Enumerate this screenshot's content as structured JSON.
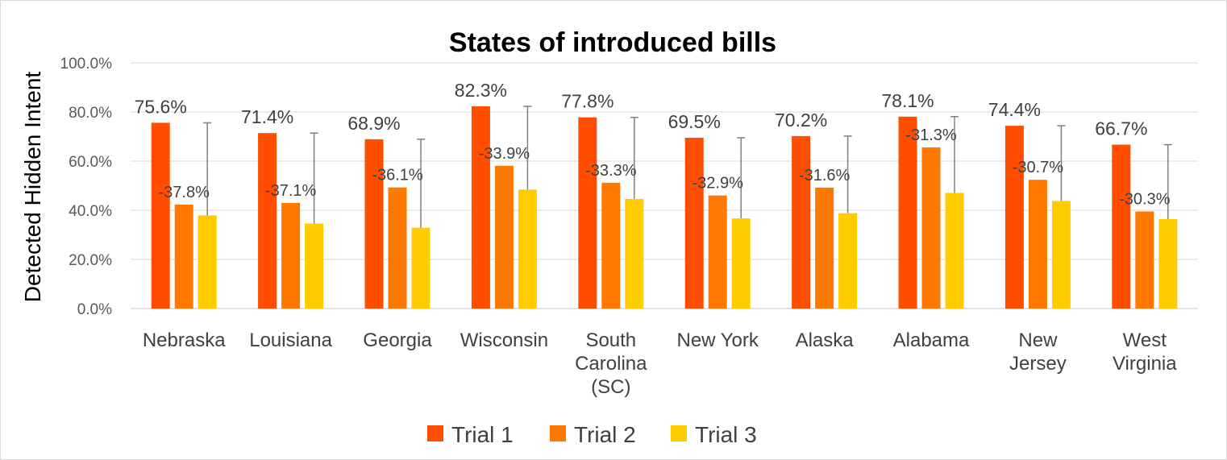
{
  "chart_data": {
    "type": "bar",
    "title": "States of introduced bills",
    "xlabel": "",
    "ylabel": "Detected Hidden Intent",
    "ylim": [
      0,
      100
    ],
    "yticks": [
      "0.0%",
      "20.0%",
      "40.0%",
      "60.0%",
      "80.0%",
      "100.0%"
    ],
    "grid": true,
    "legend_position": "bottom",
    "categories": [
      [
        "Nebraska"
      ],
      [
        "Louisiana"
      ],
      [
        "Georgia"
      ],
      [
        "Wisconsin"
      ],
      [
        "South",
        "Carolina",
        "(SC)"
      ],
      [
        "New York"
      ],
      [
        "Alaska"
      ],
      [
        "Alabama"
      ],
      [
        "New",
        "Jersey"
      ],
      [
        "West",
        "Virginia"
      ]
    ],
    "series": [
      {
        "name": "Trial 1",
        "color": "#FF4E00",
        "values": [
          75.6,
          71.4,
          68.9,
          82.3,
          77.8,
          69.5,
          70.2,
          78.1,
          74.4,
          66.7
        ],
        "labels": [
          "75.6%",
          "71.4%",
          "68.9%",
          "82.3%",
          "77.8%",
          "69.5%",
          "70.2%",
          "78.1%",
          "74.4%",
          "66.7%"
        ]
      },
      {
        "name": "Trial 2",
        "color": "#FF7800",
        "values": [
          42.3,
          43.0,
          49.3,
          58.1,
          51.2,
          46.0,
          49.2,
          65.6,
          52.4,
          39.5
        ],
        "labels": [
          "-37.8%",
          "-37.1%",
          "-36.1%",
          "-33.9%",
          "-33.3%",
          "-32.9%",
          "-31.6%",
          "-31.3%",
          "-30.7%",
          "-30.3%"
        ]
      },
      {
        "name": "Trial 3",
        "color": "#FFCC00",
        "values": [
          37.9,
          34.6,
          32.9,
          48.4,
          44.6,
          36.7,
          38.8,
          47.1,
          43.8,
          36.4
        ],
        "error_top": [
          75.6,
          71.4,
          68.9,
          82.3,
          77.8,
          69.5,
          70.2,
          78.1,
          74.4,
          66.7
        ]
      }
    ]
  }
}
